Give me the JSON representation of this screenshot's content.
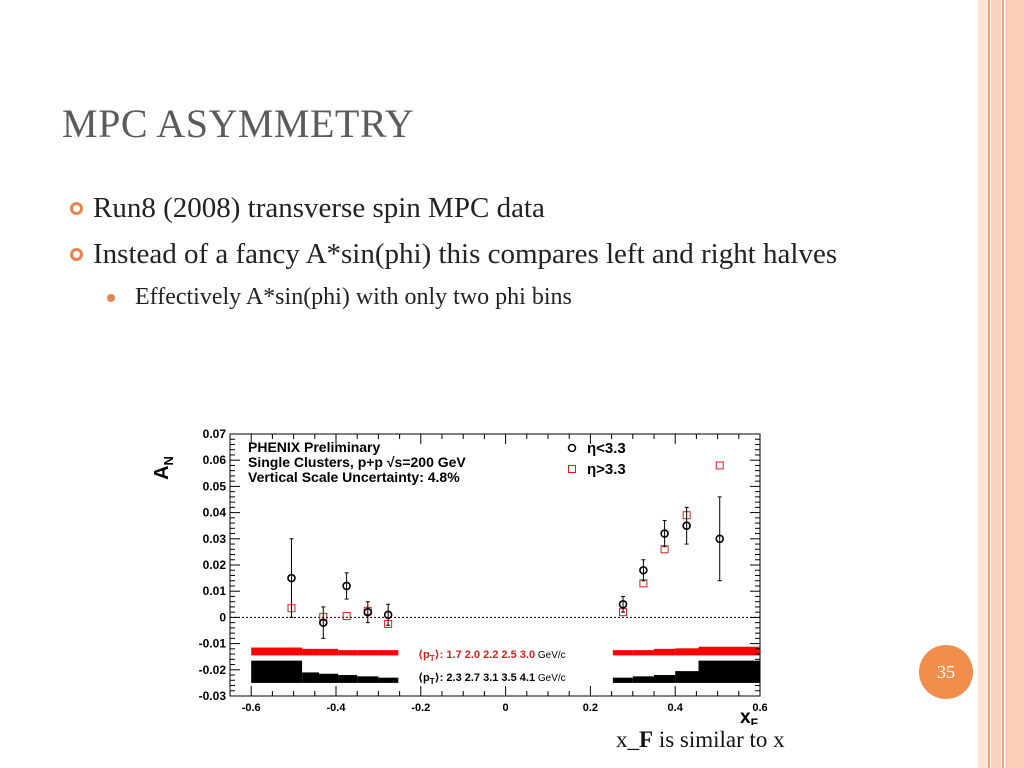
{
  "slide": {
    "title_initials": [
      "M",
      "A"
    ],
    "title_rest": [
      "PC",
      "SYMMETRY"
    ],
    "title": "MPC Asymmetry",
    "bullets": [
      "Run8 (2008) transverse spin MPC data",
      "Instead of a fancy A*sin(phi) this compares left and right halves"
    ],
    "sub_bullets": [
      "Effectively A*sin(phi) with only two phi bins"
    ],
    "caption_prefix": "x_",
    "caption_bold": "F",
    "caption_suffix": " is similar to x",
    "slide_number": "35"
  },
  "colors": {
    "accent": "#f28e4b",
    "stripe_light": "#fbd9c6",
    "series_low_eta": "#000000",
    "series_high_eta": "#d62020"
  },
  "chart_data": {
    "type": "scatter",
    "xlim": [
      -0.65,
      0.6
    ],
    "ylim": [
      -0.03,
      0.07
    ],
    "xticks": [
      -0.6,
      -0.4,
      -0.2,
      0,
      0.2,
      0.4,
      0.6
    ],
    "yticks": [
      -0.03,
      -0.02,
      -0.01,
      0,
      0.01,
      0.02,
      0.03,
      0.04,
      0.05,
      0.06,
      0.07
    ],
    "xtick_labels": [
      "-0.6",
      "-0.4",
      "-0.2",
      "0",
      "0.2",
      "0.4",
      "0.6"
    ],
    "ytick_labels": [
      "-0.03",
      "-0.02",
      "-0.01",
      "0",
      "0.01",
      "0.02",
      "0.03",
      "0.04",
      "0.05",
      "0.06",
      "0.07"
    ],
    "ylabel_main": "A",
    "ylabel_sub": "N",
    "xlabel_main": "x",
    "xlabel_sub": "F",
    "annotations": [
      "PHENIX Preliminary",
      "Single Clusters, p+p √s=200 GeV",
      "Vertical Scale Uncertainty: 4.8%"
    ],
    "legend_placement": "top-right",
    "series": [
      {
        "name": "η<3.3",
        "marker": "circle",
        "points": [
          {
            "x": -0.505,
            "y": 0.015,
            "err": 0.015
          },
          {
            "x": -0.43,
            "y": -0.002,
            "err": 0.006
          },
          {
            "x": -0.375,
            "y": 0.012,
            "err": 0.005
          },
          {
            "x": -0.325,
            "y": 0.002,
            "err": 0.004
          },
          {
            "x": -0.277,
            "y": 0.001,
            "err": 0.004
          },
          {
            "x": 0.277,
            "y": 0.005,
            "err": 0.003
          },
          {
            "x": 0.325,
            "y": 0.018,
            "err": 0.004
          },
          {
            "x": 0.375,
            "y": 0.032,
            "err": 0.005
          },
          {
            "x": 0.427,
            "y": 0.035,
            "err": 0.007
          },
          {
            "x": 0.505,
            "y": 0.03,
            "err": 0.016
          }
        ]
      },
      {
        "name": "η>3.3",
        "marker": "square",
        "points": [
          {
            "x": -0.505,
            "y": 0.0035,
            "err": 0
          },
          {
            "x": -0.43,
            "y": 0.0002,
            "err": 0
          },
          {
            "x": -0.375,
            "y": 0.0005,
            "err": 0
          },
          {
            "x": -0.325,
            "y": 0.0025,
            "err": 0
          },
          {
            "x": -0.277,
            "y": -0.0025,
            "err": 0
          },
          {
            "x": 0.277,
            "y": 0.002,
            "err": 0
          },
          {
            "x": 0.325,
            "y": 0.013,
            "err": 0
          },
          {
            "x": 0.375,
            "y": 0.026,
            "err": 0
          },
          {
            "x": 0.427,
            "y": 0.039,
            "err": 0
          },
          {
            "x": 0.505,
            "y": 0.058,
            "err": 0
          }
        ]
      }
    ],
    "pt_rows": [
      {
        "label_open": "⟨p",
        "label_sub": "T",
        "label_close": "⟩: ",
        "values": "1.7 2.0 2.2 2.5 3.0",
        "unit": " GeV/c"
      },
      {
        "label_open": "⟨p",
        "label_sub": "T",
        "label_close": "⟩: ",
        "values": "2.3 2.7 3.1 3.5 4.1",
        "unit": " GeV/c"
      }
    ],
    "pt_bands": [
      {
        "color": "#ff0000",
        "segments": [
          {
            "x0": -0.6,
            "x1": -0.48,
            "y0": -0.0145,
            "y1": -0.0115
          },
          {
            "x0": -0.48,
            "x1": -0.44,
            "y0": -0.0145,
            "y1": -0.012
          },
          {
            "x0": -0.44,
            "x1": -0.395,
            "y0": -0.0145,
            "y1": -0.012
          },
          {
            "x0": -0.395,
            "x1": -0.35,
            "y0": -0.0145,
            "y1": -0.0125
          },
          {
            "x0": -0.35,
            "x1": -0.3,
            "y0": -0.0145,
            "y1": -0.0125
          },
          {
            "x0": -0.3,
            "x1": -0.253,
            "y0": -0.0145,
            "y1": -0.0125
          },
          {
            "x0": 0.253,
            "x1": 0.3,
            "y0": -0.0145,
            "y1": -0.0125
          },
          {
            "x0": 0.3,
            "x1": 0.35,
            "y0": -0.0145,
            "y1": -0.0125
          },
          {
            "x0": 0.35,
            "x1": 0.4,
            "y0": -0.0145,
            "y1": -0.012
          },
          {
            "x0": 0.4,
            "x1": 0.455,
            "y0": -0.0145,
            "y1": -0.0118
          },
          {
            "x0": 0.455,
            "x1": 0.6,
            "y0": -0.0145,
            "y1": -0.0112
          }
        ]
      },
      {
        "color": "#000000",
        "segments": [
          {
            "x0": -0.6,
            "x1": -0.48,
            "y0": -0.025,
            "y1": -0.0165
          },
          {
            "x0": -0.48,
            "x1": -0.44,
            "y0": -0.025,
            "y1": -0.021
          },
          {
            "x0": -0.44,
            "x1": -0.395,
            "y0": -0.025,
            "y1": -0.0215
          },
          {
            "x0": -0.395,
            "x1": -0.35,
            "y0": -0.025,
            "y1": -0.022
          },
          {
            "x0": -0.35,
            "x1": -0.3,
            "y0": -0.025,
            "y1": -0.0225
          },
          {
            "x0": -0.3,
            "x1": -0.253,
            "y0": -0.025,
            "y1": -0.023
          },
          {
            "x0": 0.253,
            "x1": 0.3,
            "y0": -0.025,
            "y1": -0.023
          },
          {
            "x0": 0.3,
            "x1": 0.35,
            "y0": -0.025,
            "y1": -0.0225
          },
          {
            "x0": 0.35,
            "x1": 0.4,
            "y0": -0.025,
            "y1": -0.022
          },
          {
            "x0": 0.4,
            "x1": 0.455,
            "y0": -0.025,
            "y1": -0.0205
          },
          {
            "x0": 0.455,
            "x1": 0.6,
            "y0": -0.025,
            "y1": -0.0165
          }
        ]
      }
    ]
  }
}
